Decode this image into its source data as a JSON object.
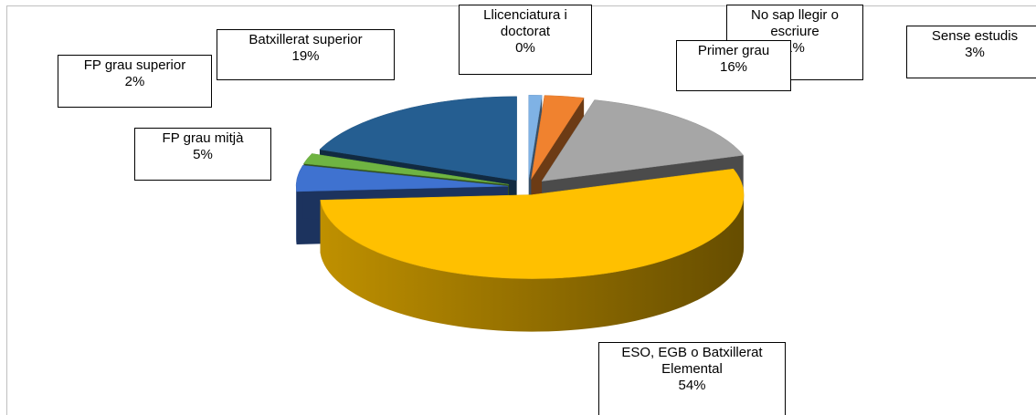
{
  "chart_data": {
    "type": "pie",
    "categories": [
      "Llicenciatura i doctorat",
      "No sap llegir o escriure",
      "Sense estudis",
      "Primer grau",
      "ESO, EGB o Batxillerat Elemental",
      "FP grau mitjà",
      "FP grau superior",
      "Batxillerat superior"
    ],
    "values": [
      0,
      1,
      3,
      16,
      54,
      5,
      2,
      19
    ],
    "value_labels": [
      "0%",
      "1%",
      "3%",
      "16%",
      "54%",
      "5%",
      "2%",
      "19%"
    ],
    "colors": [
      "#4f81bd",
      "#7fb2e5",
      "#f0822f",
      "#a6a6a6",
      "#ffc000",
      "#3f72d0",
      "#6fb442",
      "#255e91"
    ]
  }
}
